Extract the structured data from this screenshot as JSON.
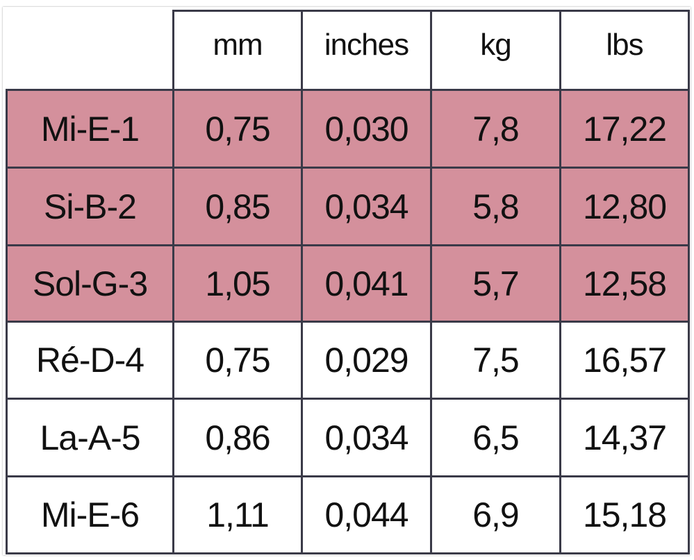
{
  "table": {
    "columns": [
      "mm",
      "inches",
      "kg",
      "lbs"
    ],
    "rows": [
      {
        "label": "Mi-E-1",
        "cells": [
          "0,75",
          "0,030",
          "7,8",
          "17,22"
        ]
      },
      {
        "label": "Si-B-2",
        "cells": [
          "0,85",
          "0,034",
          "5,8",
          "12,80"
        ]
      },
      {
        "label": "Sol-G-3",
        "cells": [
          "1,05",
          "0,041",
          "5,7",
          "12,58"
        ]
      },
      {
        "label": "Ré-D-4",
        "cells": [
          "0,75",
          "0,029",
          "7,5",
          "16,57"
        ]
      },
      {
        "label": "La-A-5",
        "cells": [
          "0,86",
          "0,034",
          "6,5",
          "14,37"
        ]
      },
      {
        "label": "Mi-E-6",
        "cells": [
          "1,11",
          "0,044",
          "6,9",
          "15,18"
        ]
      }
    ]
  }
}
